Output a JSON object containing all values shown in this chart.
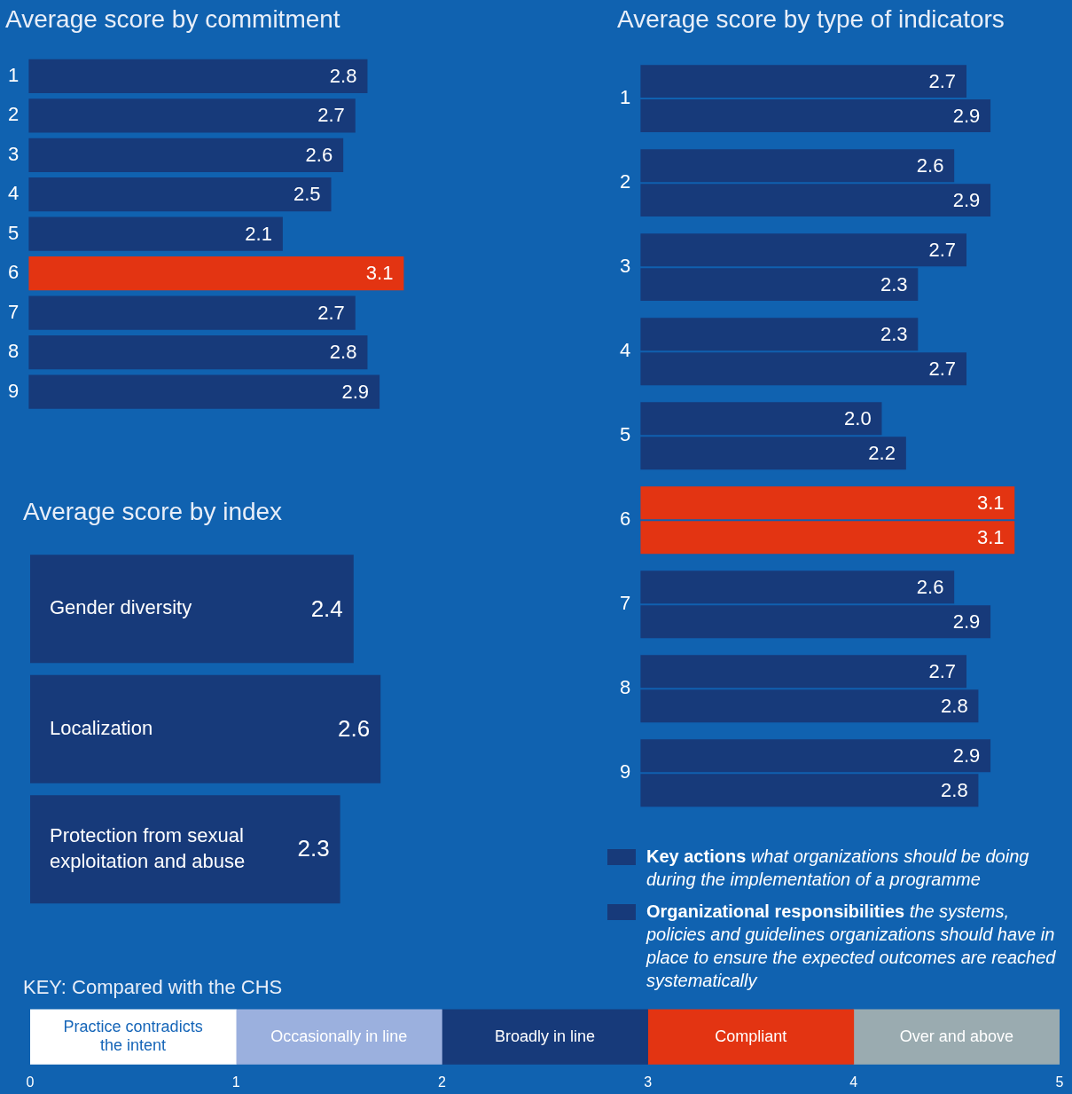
{
  "chart_data": [
    {
      "type": "bar",
      "orientation": "horizontal",
      "title": "Average score by commitment",
      "categories": [
        "1",
        "2",
        "3",
        "4",
        "5",
        "6",
        "7",
        "8",
        "9"
      ],
      "values": [
        2.8,
        2.7,
        2.6,
        2.5,
        2.1,
        3.1,
        2.7,
        2.8,
        2.9
      ],
      "colors": [
        "#173a7a",
        "#173a7a",
        "#173a7a",
        "#173a7a",
        "#173a7a",
        "#e33412",
        "#173a7a",
        "#173a7a",
        "#173a7a"
      ],
      "data_labels": true,
      "tick_labels": "y",
      "grid": false,
      "legend": false
    },
    {
      "type": "bar",
      "orientation": "horizontal",
      "title": "Average score by type of indicators",
      "categories": [
        "1",
        "2",
        "3",
        "4",
        "5",
        "6",
        "7",
        "8",
        "9"
      ],
      "series": [
        {
          "name": "Key actions",
          "color": "#173a7a",
          "colors": [
            "#173a7a",
            "#173a7a",
            "#173a7a",
            "#173a7a",
            "#173a7a",
            "#e33412",
            "#173a7a",
            "#173a7a",
            "#173a7a"
          ],
          "values": [
            2.7,
            2.6,
            2.7,
            2.3,
            2.0,
            3.1,
            2.6,
            2.7,
            2.9
          ],
          "value_labels": [
            "2.7",
            "2.6",
            "2.7",
            "2.3",
            "2.0",
            "3.1",
            "2.6",
            "2.7",
            "2.9"
          ]
        },
        {
          "name": "Organizational responsibilities",
          "color": "#173a7a",
          "colors": [
            "#173a7a",
            "#173a7a",
            "#173a7a",
            "#173a7a",
            "#173a7a",
            "#e33412",
            "#173a7a",
            "#173a7a",
            "#173a7a"
          ],
          "values": [
            2.9,
            2.9,
            2.3,
            2.7,
            2.2,
            3.1,
            2.9,
            2.8,
            2.8
          ],
          "value_labels": [
            "2.9",
            "2.9",
            "2.3",
            "2.7",
            "2.2",
            "3.1",
            "2.9",
            "2.8",
            "2.8"
          ]
        }
      ],
      "annotations": [
        "what organizations should be doing during the implementation of a programme",
        "the systems, policies and guidelines organizations should have in place to ensure the expected outcomes are reached systematically"
      ],
      "tick_labels": "y",
      "grid": false,
      "legend": "bottom"
    },
    {
      "type": "bar",
      "orientation": "horizontal",
      "title": "Average score by index",
      "categories": [
        "Gender diversity",
        "Localization",
        "Protection from sexual exploitation and abuse"
      ],
      "values": [
        2.4,
        2.6,
        2.3
      ],
      "color": "#173a7a",
      "data_labels": true,
      "tick_labels": false,
      "grid": false,
      "legend": false
    },
    {
      "type": "bar",
      "orientation": "horizontal",
      "stacked": true,
      "title": "KEY: Compared with the CHS",
      "categories": [
        null
      ],
      "series": [
        {
          "name": "Practice contradicts the intent",
          "color": "#ffffff",
          "values": [
            1
          ]
        },
        {
          "name": "Occasionally in line",
          "color": "#9bb0de",
          "values": [
            1
          ]
        },
        {
          "name": "Broadly in line",
          "color": "#173a7a",
          "values": [
            1
          ]
        },
        {
          "name": "Compliant",
          "color": "#e33412",
          "values": [
            1
          ]
        },
        {
          "name": "Over and above",
          "color": "#9aabb0",
          "values": [
            1
          ]
        }
      ],
      "xlim": [
        0,
        5
      ],
      "xticks": [
        0,
        1,
        2,
        3,
        4,
        5
      ],
      "tick_labels": "x",
      "grid": false,
      "legend": false
    }
  ]
}
